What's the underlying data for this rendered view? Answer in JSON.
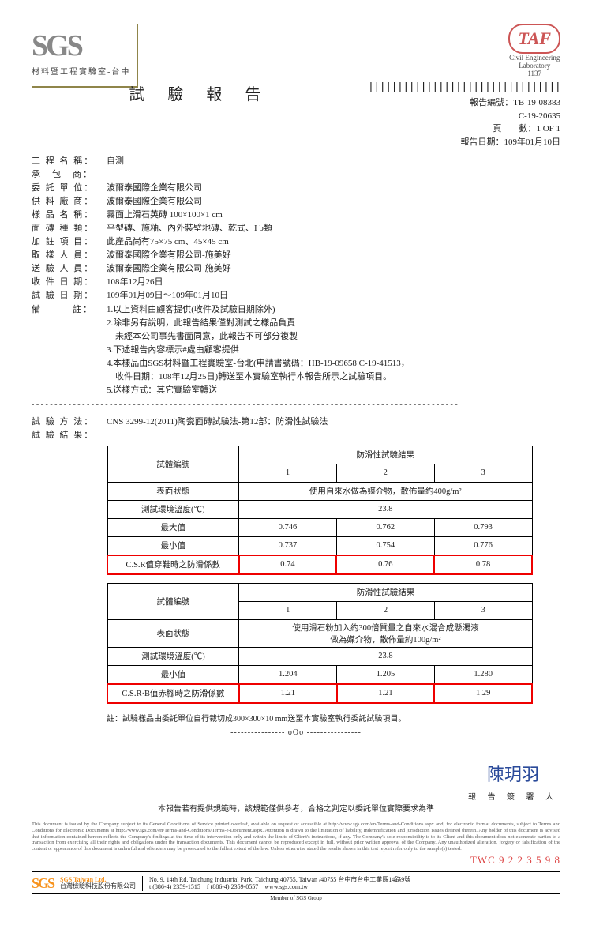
{
  "logo": {
    "name": "SGS",
    "sub": "材料暨工程實驗室-台中"
  },
  "taf": {
    "name": "TAF",
    "line1": "Civil Engineering",
    "line2": "Laboratory",
    "num": "1137"
  },
  "title": "試 驗 報 告",
  "meta": {
    "reportno_lbl": "報告編號：",
    "reportno1": "TB-19-08383",
    "reportno2": "C-19-20635",
    "page_lbl": "頁　　數：",
    "page": "1  OF  1",
    "date_lbl": "報告日期：",
    "date": "109年01月10日"
  },
  "fields": [
    {
      "l": "工 程 名 稱：",
      "v": "自測"
    },
    {
      "l": "承　包　商：",
      "v": "---"
    },
    {
      "l": "委 託 單 位：",
      "v": "波爾泰國際企業有限公司"
    },
    {
      "l": "供 料 廠 商：",
      "v": "波爾泰國際企業有限公司"
    },
    {
      "l": "樣 品 名 稱：",
      "v": "霧面止滑石英磚 100×100×1 cm"
    },
    {
      "l": "面 磚 種 類：",
      "v": "平型磚、施釉、內外裝壁地磚、乾式、I b類"
    },
    {
      "l": "加 註 項 目：",
      "v": "此產品尚有75×75 cm、45×45 cm"
    },
    {
      "l": "取 樣 人 員：",
      "v": "波爾泰國際企業有限公司-施美好"
    },
    {
      "l": "送 驗 人 員：",
      "v": "波爾泰國際企業有限公司-施美好"
    },
    {
      "l": "收 件 日 期：",
      "v": "108年12月26日"
    },
    {
      "l": "試 驗 日 期：",
      "v": "109年01月09日～109年01月10日"
    }
  ],
  "remarks_label": "備　　　註：",
  "remarks": [
    "1.以上資料由顧客提供(收件及試驗日期除外)",
    "2.除非另有說明，此報告結果僅對測試之樣品負責",
    "　未經本公司事先書面同意，此報告不可部分複製",
    "3.下述報告內容標示#處由顧客提供",
    "4.本樣品由SGS材料暨工程實驗室-台北(申請書號碼：HB-19-09658 C-19-41513，",
    "　收件日期：108年12月25日)轉送至本實驗室執行本報告所示之試驗項目。",
    "5.送樣方式：其它實驗室轉送"
  ],
  "method_lbl": "試 驗 方 法：",
  "method": "CNS 3299-12(2011)陶瓷面磚試驗法-第12部：防滑性試驗法",
  "result_lbl": "試 驗 結 果：",
  "t1": {
    "h1": "試體編號",
    "h2": "防滑性試驗結果",
    "c": [
      "1",
      "2",
      "3"
    ],
    "rows": [
      {
        "l": "表面狀態",
        "full": "使用自來水做為媒介物，散佈量約400g/m²"
      },
      {
        "l": "測試環境溫度(℃)",
        "full": "23.8"
      },
      {
        "l": "最大值",
        "v": [
          "0.746",
          "0.762",
          "0.793"
        ]
      },
      {
        "l": "最小值",
        "v": [
          "0.737",
          "0.754",
          "0.776"
        ]
      },
      {
        "l": "C.S.R值穿鞋時之防滑係數",
        "v": [
          "0.74",
          "0.76",
          "0.78"
        ],
        "hl": true
      }
    ]
  },
  "t2": {
    "h1": "試體編號",
    "h2": "防滑性試驗結果",
    "c": [
      "1",
      "2",
      "3"
    ],
    "rows": [
      {
        "l": "表面狀態",
        "full": "使用滑石粉加入約300倍質量之自來水混合成懸濁液\n做為媒介物，散佈量約100g/m²"
      },
      {
        "l": "測試環境溫度(℃)",
        "full": "23.8"
      },
      {
        "l": "最小值",
        "v": [
          "1.204",
          "1.205",
          "1.280"
        ]
      },
      {
        "l": "C.S.R·B值赤腳時之防滑係數",
        "v": [
          "1.21",
          "1.21",
          "1.29"
        ],
        "hl": true
      }
    ]
  },
  "table_note": "註：試驗樣品由委託單位自行裁切成300×300×10 mm送至本實驗室執行委託試驗項目。",
  "ooo": "---------------- oOo ----------------",
  "signature": {
    "name": "陳玥羽",
    "label": "報 告 簽 署 人"
  },
  "pre_disc": "本報告若有提供規範時，該規範僅供參考，合格之判定以委託單位實際要求為準",
  "disclaimer": "This document is issued by the Company subject to its General Conditions of Service printed overleaf, available on request or accessible at http://www.sgs.com/en/Terms-and-Conditions.aspx and, for electronic format documents, subject to Terms and Conditions for Electronic Documents at http://www.sgs.com/en/Terms-and-Conditions/Terms-e-Document.aspx. Attention is drawn to the limitation of liability, indemnification and jurisdiction issues defined therein. Any holder of this document is advised that information contained hereon reflects the Company's findings at the time of its intervention only and within the limits of Client's instructions, if any. The Company's sole responsibility is to its Client and this document does not exonerate parties to a transaction from exercising all their rights and obligations under the transaction documents. This document cannot be reproduced except in full, without prior written approval of the Company. Any unauthorized alteration, forgery or falsification of the content or appearance of this document is unlawful and offenders may be prosecuted to the fullest extent of the law. Unless otherwise stated the results shown in this test report refer only to the sample(s) tested.",
  "twc": "TWC 9 2 2 3 5 9 8",
  "footer": {
    "logo": "SGS",
    "co_en": "SGS Taiwan Ltd.",
    "co_zh": "台灣檢驗科技股份有限公司",
    "addr_en": "No. 9, 14th Rd. Taichung Industrial Park, Taichung 40755, Taiwan",
    "addr_zh": "/40755 台中市台中工業區14路9號",
    "tel": "t (886-4) 2359-1515",
    "fax": "f (886-4) 2359-0557",
    "web": "www.sgs.com.tw",
    "member": "Member of SGS Group"
  }
}
